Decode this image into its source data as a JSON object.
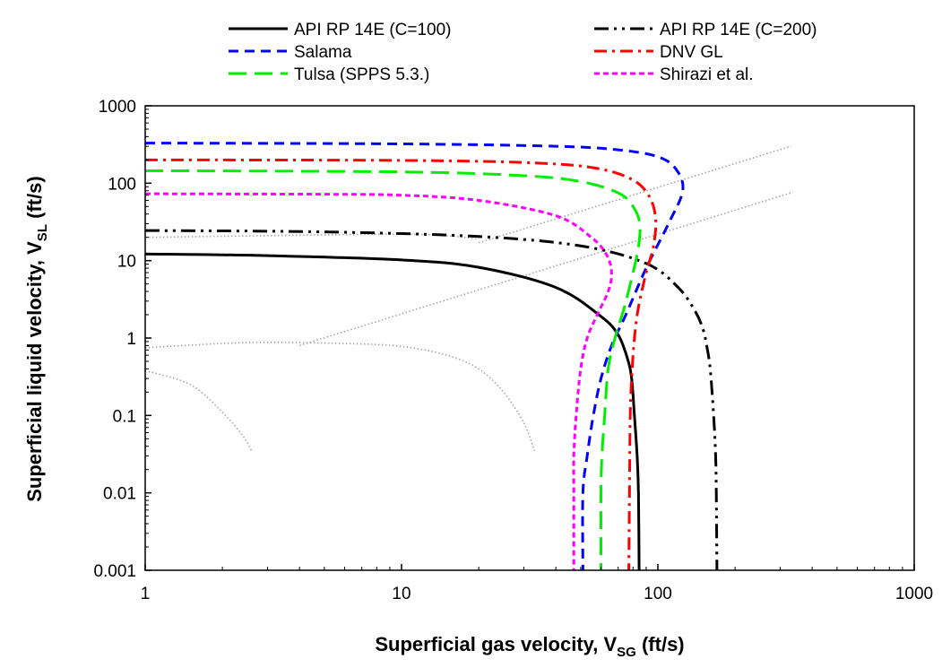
{
  "chart_data": {
    "type": "line",
    "x_scale": "log",
    "y_scale": "log",
    "xlabel": "Superficial gas velocity, V",
    "xlabel_sub": "SG",
    "xlabel_unit": " (ft/s)",
    "ylabel": "Superficial liquid velocity, V",
    "ylabel_sub": "SL",
    "ylabel_unit": " (ft/s)",
    "xlim": [
      1,
      1000
    ],
    "ylim": [
      0.001,
      1000
    ],
    "x_ticks": [
      "1",
      "10",
      "100",
      "1000"
    ],
    "y_ticks": [
      "0.001",
      "0.01",
      "0.1",
      "1",
      "10",
      "100",
      "1000"
    ],
    "grid": false,
    "legend_position": "top",
    "series": [
      {
        "name": "API RP 14E (C=100)",
        "color": "#000000",
        "dash": "solid",
        "points": [
          [
            1,
            12.2
          ],
          [
            3,
            11.6
          ],
          [
            10,
            10.2
          ],
          [
            20,
            8.2
          ],
          [
            40,
            4.5
          ],
          [
            60,
            1.9
          ],
          [
            70,
            1.1
          ],
          [
            76,
            0.55
          ],
          [
            79,
            0.3
          ],
          [
            81,
            0.1
          ],
          [
            83,
            0.03
          ],
          [
            84,
            0.01
          ],
          [
            84.5,
            0.001
          ]
        ]
      },
      {
        "name": "API RP 14E (C=200)",
        "color": "#000000",
        "dash": "dash-dot-dot",
        "points": [
          [
            1,
            24.5
          ],
          [
            5,
            23.5
          ],
          [
            20,
            20.5
          ],
          [
            50,
            15.5
          ],
          [
            90,
            9.2
          ],
          [
            120,
            4.5
          ],
          [
            140,
            2.2
          ],
          [
            150,
            1.3
          ],
          [
            155,
            0.8
          ],
          [
            160,
            0.4
          ],
          [
            165,
            0.1
          ],
          [
            168,
            0.03
          ],
          [
            169,
            0.01
          ],
          [
            170,
            0.001
          ]
        ]
      },
      {
        "name": "Salama",
        "color": "#0000ff",
        "dash": "dash",
        "points": [
          [
            1,
            330
          ],
          [
            10,
            322
          ],
          [
            40,
            300
          ],
          [
            70,
            270
          ],
          [
            100,
            220
          ],
          [
            118,
            150
          ],
          [
            125,
            80
          ],
          [
            110,
            30
          ],
          [
            90,
            8
          ],
          [
            75,
            2
          ],
          [
            66,
            0.8
          ],
          [
            60,
            0.3
          ],
          [
            56,
            0.1
          ],
          [
            53,
            0.03
          ],
          [
            51,
            0.01
          ],
          [
            51,
            0.001
          ]
        ]
      },
      {
        "name": "DNV GL",
        "color": "#ff0000",
        "dash": "dash-dot",
        "points": [
          [
            1,
            200
          ],
          [
            10,
            197
          ],
          [
            30,
            185
          ],
          [
            55,
            160
          ],
          [
            78,
            115
          ],
          [
            92,
            70
          ],
          [
            98,
            35
          ],
          [
            96,
            15
          ],
          [
            90,
            7
          ],
          [
            84,
            2.5
          ],
          [
            81,
            1
          ],
          [
            79,
            0.3
          ],
          [
            78,
            0.1
          ],
          [
            77.5,
            0.01
          ],
          [
            77,
            0.001
          ]
        ]
      },
      {
        "name": "Tulsa (SPPS 5.3.)",
        "color": "#00ee00",
        "dash": "long-dash",
        "points": [
          [
            1,
            145
          ],
          [
            10,
            140
          ],
          [
            30,
            125
          ],
          [
            50,
            105
          ],
          [
            70,
            75
          ],
          [
            80,
            50
          ],
          [
            85,
            30
          ],
          [
            84,
            15
          ],
          [
            80,
            7
          ],
          [
            74,
            2.5
          ],
          [
            68,
            1
          ],
          [
            64,
            0.4
          ],
          [
            62,
            0.1
          ],
          [
            60.5,
            0.03
          ],
          [
            60,
            0.01
          ],
          [
            60,
            0.001
          ]
        ]
      },
      {
        "name": "Shirazi et al.",
        "color": "#ff00ff",
        "dash": "short-dash",
        "points": [
          [
            1,
            73
          ],
          [
            5,
            72
          ],
          [
            10,
            70
          ],
          [
            20,
            60
          ],
          [
            40,
            38
          ],
          [
            55,
            20
          ],
          [
            63,
            12
          ],
          [
            66,
            7
          ],
          [
            64,
            4
          ],
          [
            58,
            2
          ],
          [
            53,
            1
          ],
          [
            50,
            0.4
          ],
          [
            48,
            0.1
          ],
          [
            47,
            0.03
          ],
          [
            47,
            0.01
          ],
          [
            47,
            0.001
          ]
        ]
      }
    ],
    "reference_curves": [
      {
        "color": "#a6a6a6",
        "points": [
          [
            1,
            20
          ],
          [
            5,
            21.5
          ],
          [
            10,
            22
          ],
          [
            15,
            21
          ],
          [
            20,
            19
          ]
        ]
      },
      {
        "color": "#a6a6a6",
        "points": [
          [
            1,
            0.75
          ],
          [
            2,
            0.85
          ],
          [
            3,
            0.88
          ],
          [
            6,
            0.85
          ],
          [
            10,
            0.78
          ],
          [
            15,
            0.6
          ],
          [
            20,
            0.4
          ],
          [
            25,
            0.2
          ],
          [
            30,
            0.08
          ],
          [
            33,
            0.035
          ]
        ]
      },
      {
        "color": "#a6a6a6",
        "points": [
          [
            1,
            0.38
          ],
          [
            1.5,
            0.25
          ],
          [
            2,
            0.11
          ],
          [
            2.4,
            0.055
          ],
          [
            2.6,
            0.035
          ]
        ]
      },
      {
        "color": "#a6a6a6",
        "points": [
          [
            4,
            0.8
          ],
          [
            330,
            75
          ]
        ]
      },
      {
        "color": "#a6a6a6",
        "points": [
          [
            20,
            17
          ],
          [
            330,
            300
          ]
        ]
      }
    ]
  }
}
